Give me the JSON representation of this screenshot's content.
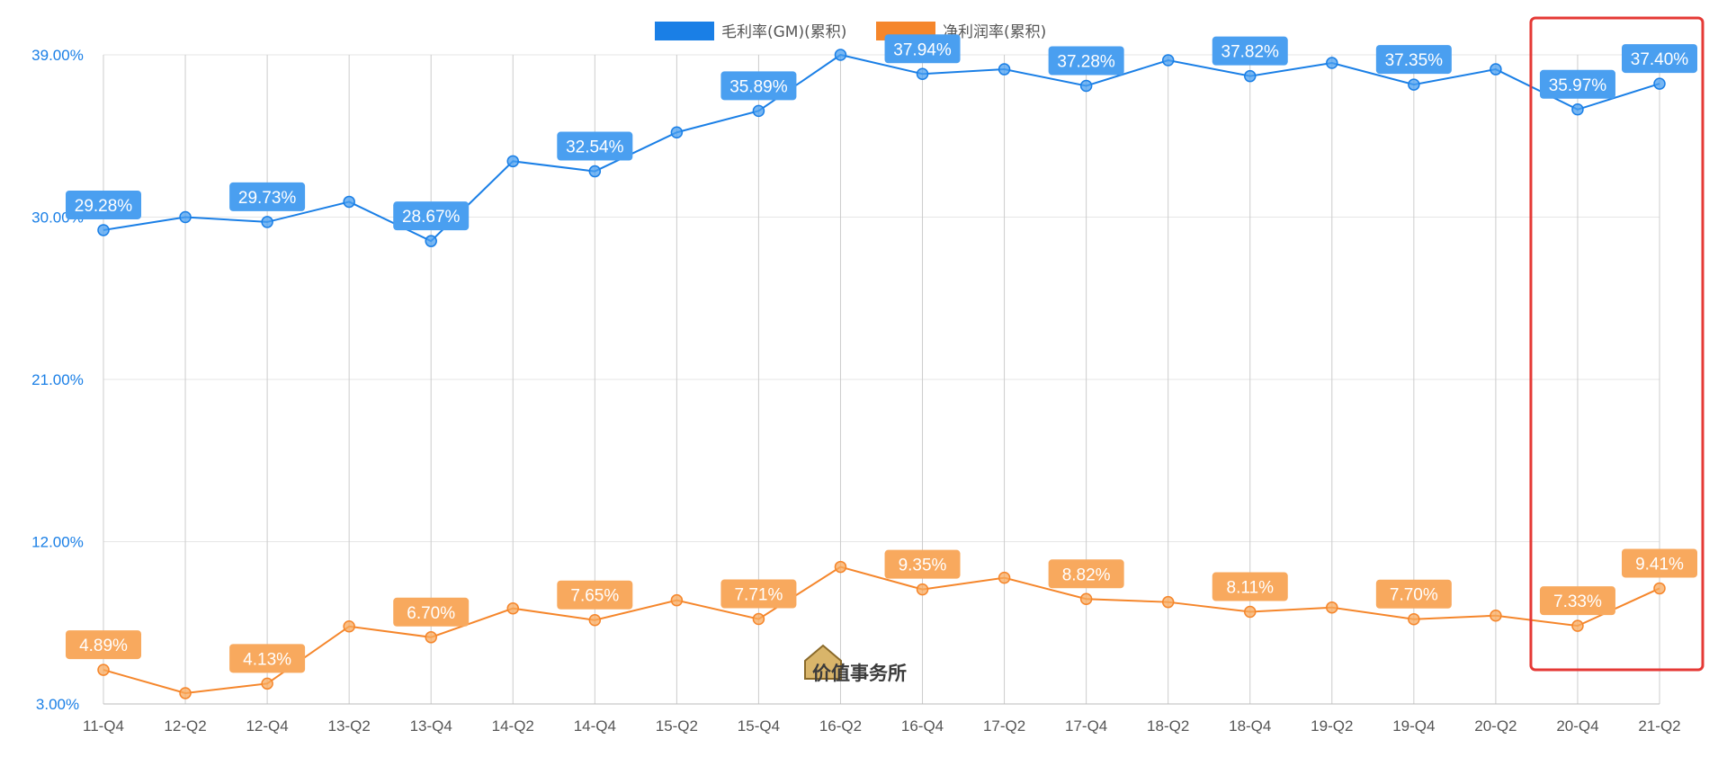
{
  "chart_data": {
    "type": "line",
    "categories": [
      "11-Q4",
      "12-Q2",
      "12-Q4",
      "13-Q2",
      "13-Q4",
      "14-Q2",
      "14-Q4",
      "15-Q2",
      "15-Q4",
      "16-Q2",
      "16-Q4",
      "17-Q2",
      "17-Q4",
      "18-Q2",
      "18-Q4",
      "19-Q2",
      "19-Q4",
      "20-Q2",
      "20-Q4",
      "21-Q2"
    ],
    "ylim": [
      3,
      39
    ],
    "yticks": [
      3,
      12,
      21,
      30,
      39
    ],
    "ytick_labels": [
      "3.00%",
      "12.00%",
      "21.00%",
      "30.00%",
      "39.00%"
    ],
    "grid": "vertical",
    "legend_position": "top-center",
    "series": [
      {
        "name": "毛利率(GM)(累积)",
        "color": "#1a7fe6",
        "label_color": "#4a9ff0",
        "values": [
          29.28,
          30.0,
          29.73,
          30.85,
          28.67,
          33.1,
          32.54,
          34.7,
          35.89,
          39.0,
          37.94,
          38.2,
          37.28,
          38.7,
          37.82,
          38.55,
          37.35,
          38.2,
          35.97,
          37.4
        ],
        "data_labels": [
          "29.28%",
          null,
          "29.73%",
          null,
          "28.67%",
          null,
          "32.54%",
          null,
          "35.89%",
          null,
          "37.94%",
          null,
          "37.28%",
          null,
          "37.82%",
          null,
          "37.35%",
          null,
          "35.97%",
          "37.40%"
        ]
      },
      {
        "name": "净利润率(累积)",
        "color": "#f5862b",
        "label_color": "#f8a95e",
        "values": [
          4.89,
          3.6,
          4.13,
          7.3,
          6.7,
          8.3,
          7.65,
          8.75,
          7.71,
          10.6,
          9.35,
          10.0,
          8.82,
          8.65,
          8.11,
          8.35,
          7.7,
          7.9,
          7.33,
          9.41
        ],
        "data_labels": [
          "4.89%",
          null,
          "4.13%",
          null,
          "6.70%",
          null,
          "7.65%",
          null,
          "7.71%",
          null,
          "9.35%",
          null,
          "8.82%",
          null,
          "8.11%",
          null,
          "7.70%",
          null,
          "7.33%",
          "9.41%"
        ]
      }
    ],
    "highlight": {
      "from_category": "20-Q4",
      "to_category": "21-Q2",
      "color": "#e53935"
    }
  },
  "watermark": {
    "text": "价值事务所",
    "icon": "house-icon"
  }
}
